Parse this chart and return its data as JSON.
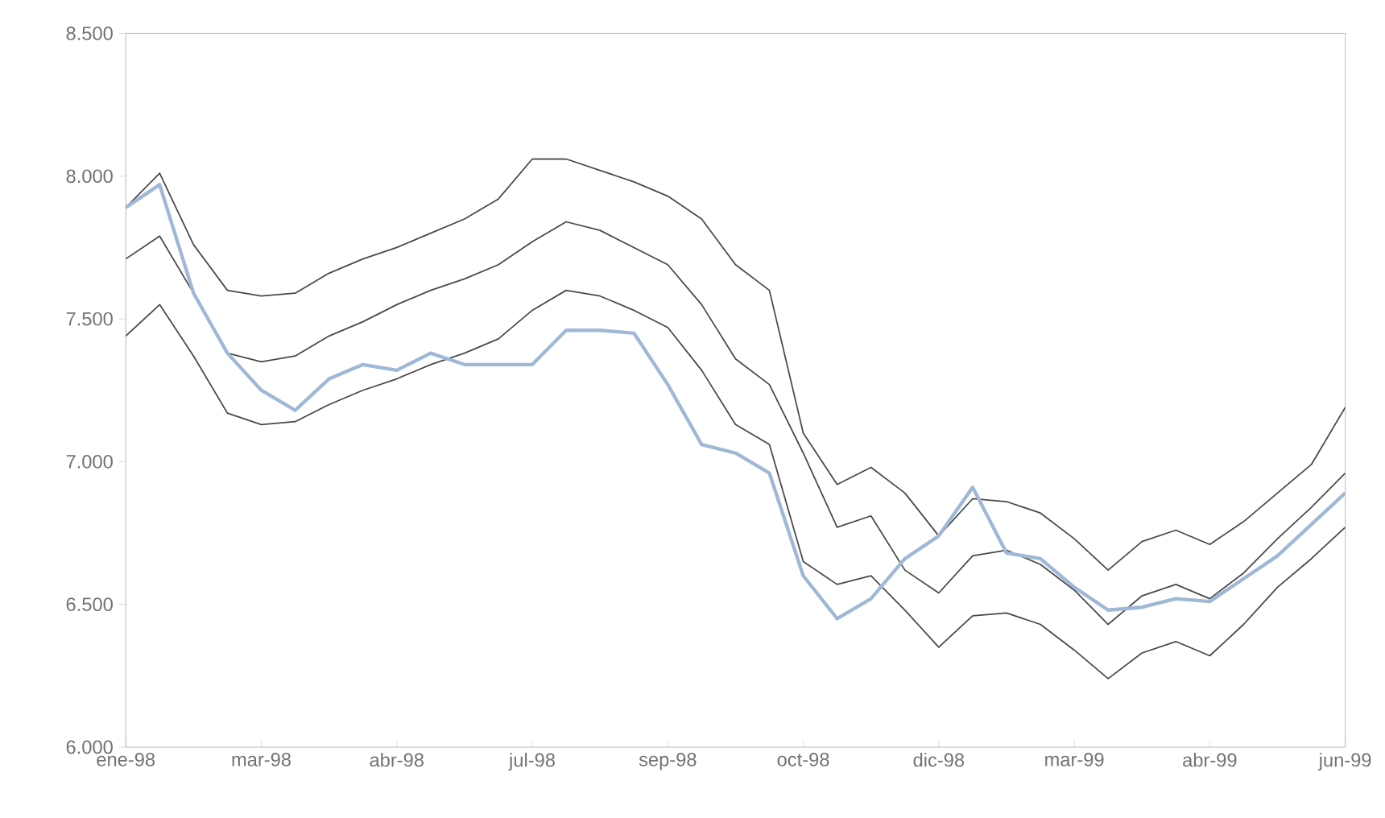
{
  "chart_data": {
    "type": "line",
    "marker": "none",
    "line_style": "solid",
    "categories": [
      "ene-98",
      null,
      null,
      null,
      "mar-98",
      null,
      null,
      null,
      "abr-98",
      null,
      null,
      null,
      "jul-98",
      null,
      null,
      null,
      "sep-98",
      null,
      null,
      null,
      "oct-98",
      null,
      null,
      null,
      "dic-98",
      null,
      null,
      null,
      "mar-99",
      null,
      null,
      null,
      "abr-99",
      null,
      null,
      null,
      "jun-99"
    ],
    "ylim": [
      6000,
      8500
    ],
    "yticks": [
      {
        "value": 6000,
        "label": "6.000"
      },
      {
        "value": 6500,
        "label": "6.500"
      },
      {
        "value": 7000,
        "label": "7.000"
      },
      {
        "value": 7500,
        "label": "7.500"
      },
      {
        "value": 8000,
        "label": "8.000"
      },
      {
        "value": 8500,
        "label": "8.500"
      }
    ],
    "series": [
      {
        "color": "#4a4a4a",
        "values": [
          7890,
          8010,
          7760,
          7600,
          7580,
          7590,
          7660,
          7710,
          7750,
          7800,
          7850,
          7920,
          8060,
          8060,
          8020,
          7980,
          7930,
          7850,
          7690,
          7600,
          7100,
          6920,
          6980,
          6890,
          6740,
          6870,
          6860,
          6820,
          6730,
          6620,
          6720,
          6760,
          6710,
          6790,
          6890,
          6990,
          7190
        ]
      },
      {
        "color": "#4a4a4a",
        "values": [
          7710,
          7790,
          7590,
          7380,
          7350,
          7370,
          7440,
          7490,
          7550,
          7600,
          7640,
          7690,
          7770,
          7840,
          7810,
          7750,
          7690,
          7550,
          7360,
          7270,
          7030,
          6770,
          6810,
          6620,
          6540,
          6670,
          6690,
          6640,
          6550,
          6430,
          6530,
          6570,
          6520,
          6610,
          6730,
          6840,
          6960
        ]
      },
      {
        "color": "#4a4a4a",
        "values": [
          7440,
          7550,
          7370,
          7170,
          7130,
          7140,
          7200,
          7250,
          7290,
          7340,
          7380,
          7430,
          7530,
          7600,
          7580,
          7530,
          7470,
          7320,
          7130,
          7060,
          6650,
          6570,
          6600,
          6480,
          6350,
          6460,
          6470,
          6430,
          6340,
          6240,
          6330,
          6370,
          6320,
          6430,
          6560,
          6660,
          6770
        ]
      },
      {
        "color": "#9fb8d6",
        "values": [
          7890,
          7970,
          7590,
          7380,
          7250,
          7180,
          7290,
          7340,
          7320,
          7380,
          7340,
          7340,
          7340,
          7460,
          7460,
          7450,
          7270,
          7060,
          7030,
          6960,
          6600,
          6450,
          6520,
          6660,
          6740,
          6910,
          6680,
          6660,
          6560,
          6480,
          6490,
          6520,
          6510,
          6590,
          6670,
          6780,
          6890
        ]
      }
    ]
  }
}
